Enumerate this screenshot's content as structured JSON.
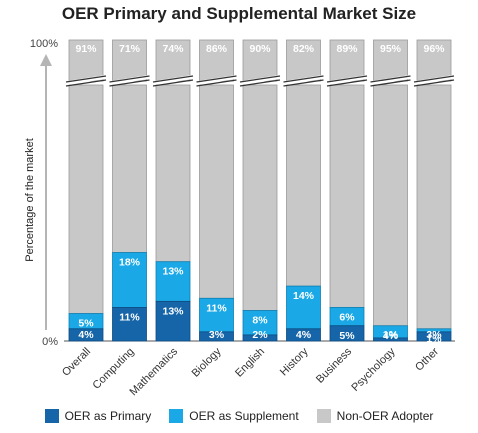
{
  "chart_data": {
    "type": "bar",
    "stacked": true,
    "title": "OER Primary and Supplemental Market Size",
    "ylabel": "Percentage of the market",
    "y_tick_labels": [
      "0%",
      "100%"
    ],
    "axis_break": true,
    "categories": [
      "Overall",
      "Computing",
      "Mathematics",
      "Biology",
      "English",
      "History",
      "Business",
      "Psychology",
      "Other"
    ],
    "series": [
      {
        "name": "OER as Primary",
        "color": "#1565a8",
        "values": [
          4,
          11,
          13,
          3,
          2,
          4,
          5,
          1,
          3
        ],
        "labels": [
          "4%",
          "11%",
          "13%",
          "3%",
          "2%",
          "4%",
          "5%",
          "1%",
          "3%"
        ]
      },
      {
        "name": "OER as Supplement",
        "color": "#1aa9e6",
        "values": [
          5,
          18,
          13,
          11,
          8,
          14,
          6,
          4,
          1
        ],
        "labels": [
          "5%",
          "18%",
          "13%",
          "11%",
          "8%",
          "14%",
          "6%",
          "4%",
          "1%"
        ]
      },
      {
        "name": "Non-OER Adopter",
        "color": "#c8c8c8",
        "values": [
          91,
          71,
          74,
          86,
          90,
          82,
          89,
          95,
          96
        ],
        "labels": [
          "91%",
          "71%",
          "74%",
          "86%",
          "90%",
          "82%",
          "89%",
          "95%",
          "96%"
        ]
      }
    ],
    "legend_position": "bottom",
    "grid": false
  }
}
